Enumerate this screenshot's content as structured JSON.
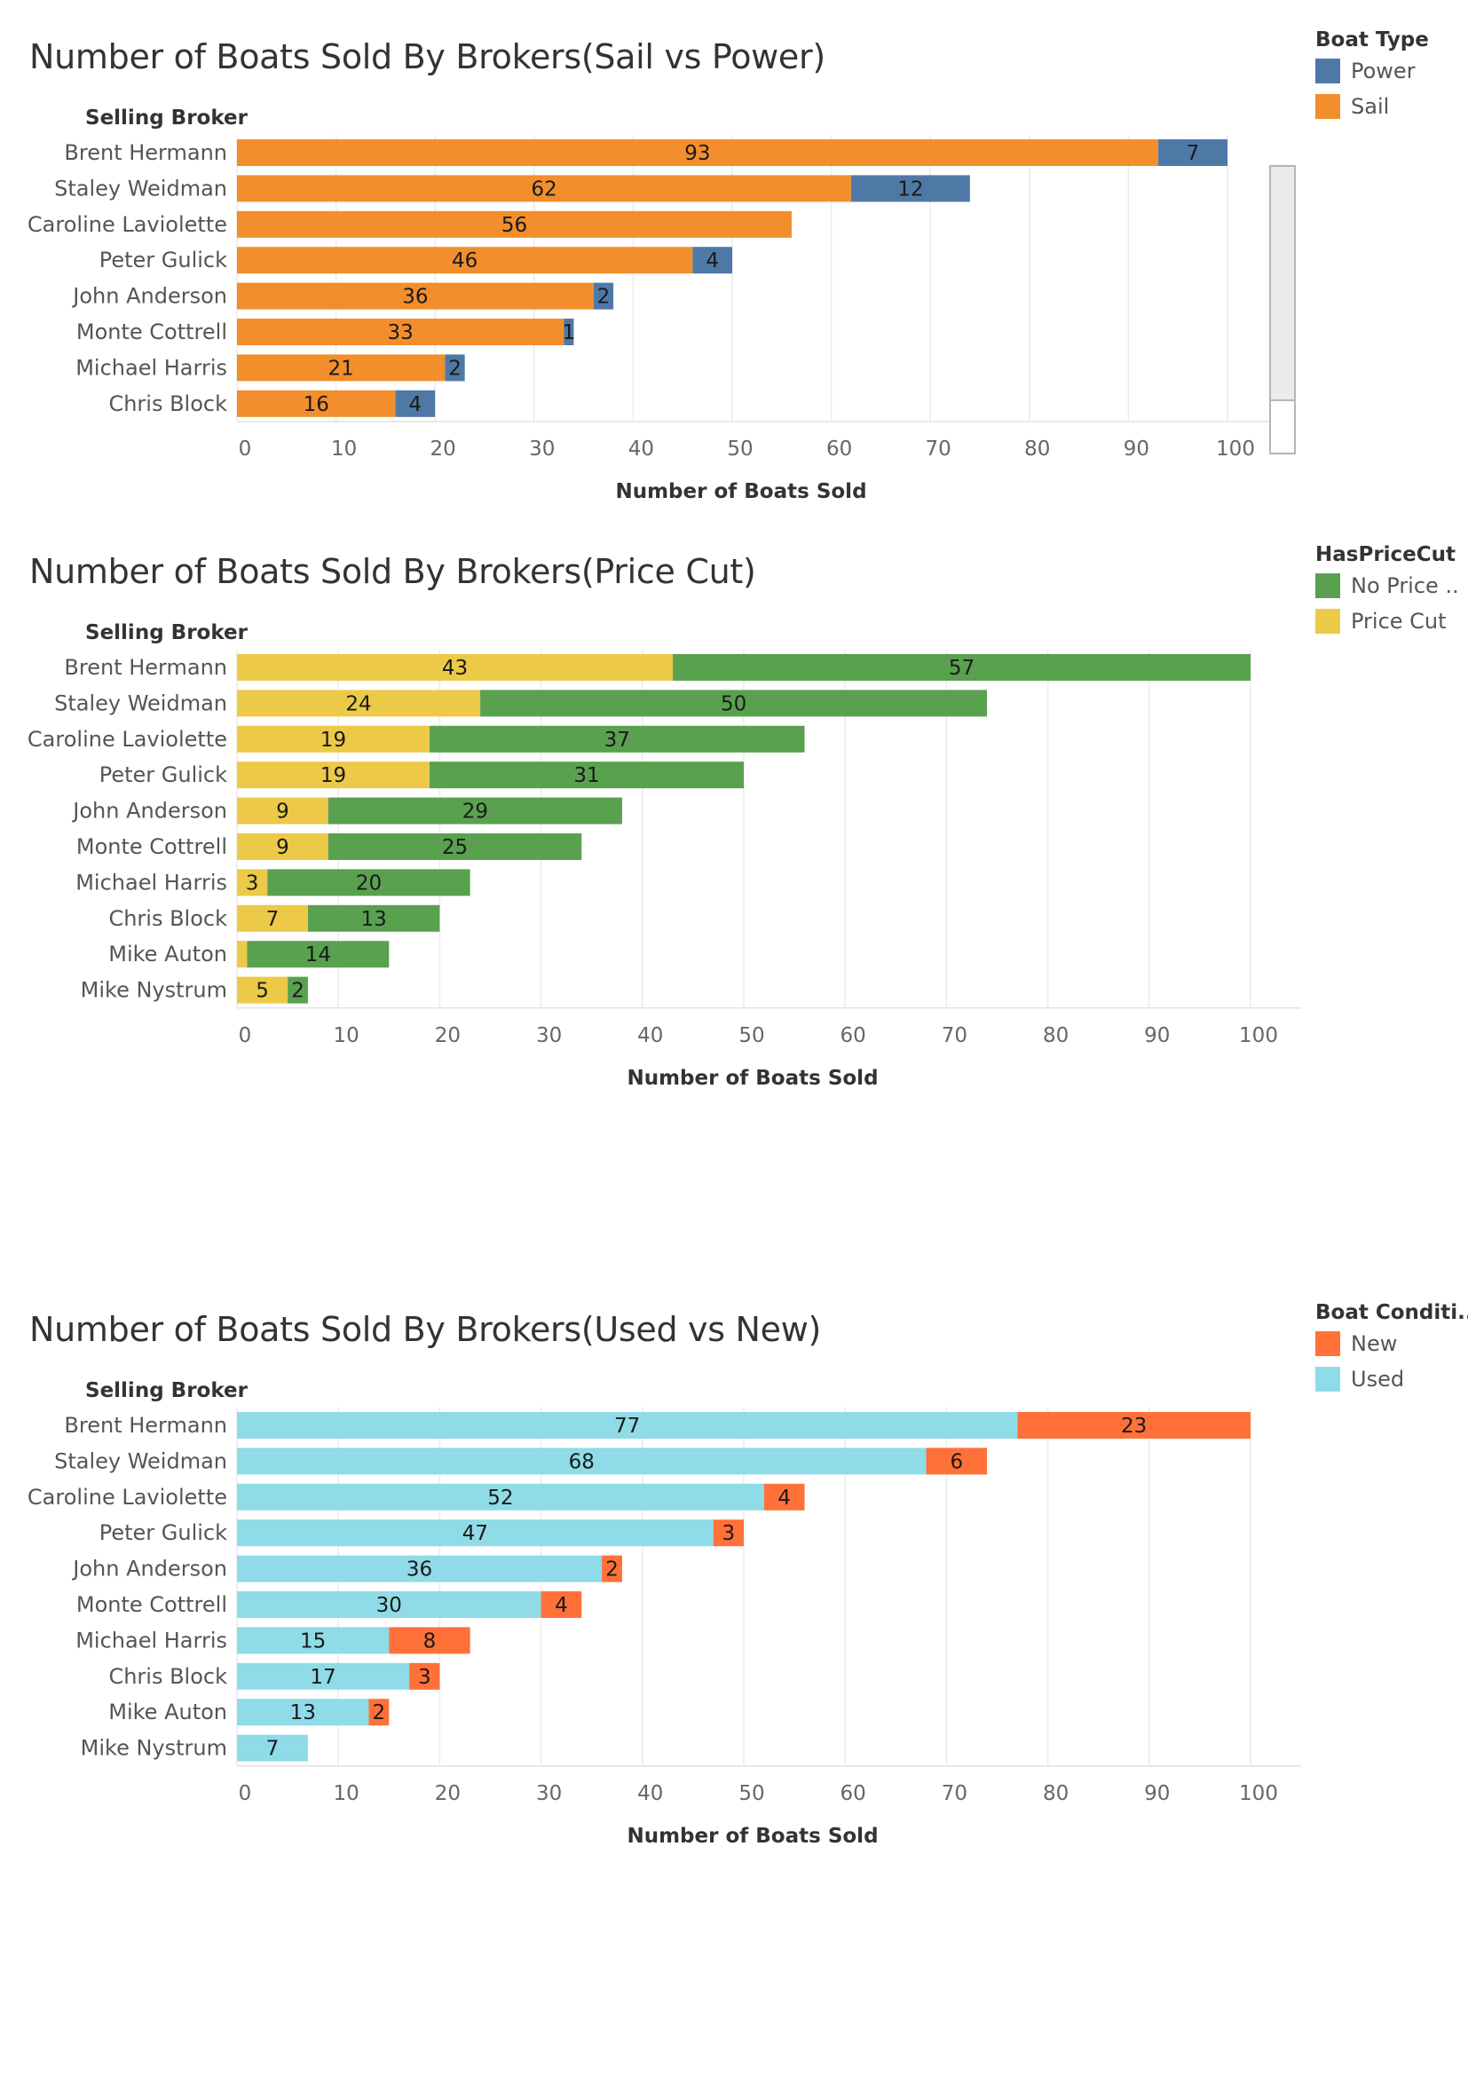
{
  "chart_data": [
    {
      "type": "bar",
      "orientation": "horizontal",
      "stacked": true,
      "title": "Number of Boats Sold By Brokers(Sail vs Power)",
      "row_header": "Selling Broker",
      "xlabel": "Number of Boats Sold",
      "xlim": [
        0,
        100
      ],
      "xticks": [
        0,
        10,
        20,
        30,
        40,
        50,
        60,
        70,
        80,
        90,
        100
      ],
      "grid": "vertical",
      "legend_title": "Boat Type",
      "legend_position": "top-right",
      "legend": [
        {
          "label": "Power",
          "color": "#4e79a7"
        },
        {
          "label": "Sail",
          "color": "#f28e2b"
        }
      ],
      "categories": [
        "Brent Hermann",
        "Staley Weidman",
        "Caroline Laviolette",
        "Peter Gulick",
        "John Anderson",
        "Monte Cottrell",
        "Michael Harris",
        "Chris Block"
      ],
      "series": [
        {
          "name": "Sail",
          "color": "#f28e2b",
          "values": [
            93,
            62,
            56,
            46,
            36,
            33,
            21,
            16
          ]
        },
        {
          "name": "Power",
          "color": "#4e79a7",
          "values": [
            7,
            12,
            null,
            4,
            2,
            1,
            2,
            4
          ]
        }
      ],
      "has_scrollbar": true
    },
    {
      "type": "bar",
      "orientation": "horizontal",
      "stacked": true,
      "title": "Number of Boats Sold By Brokers(Price Cut)",
      "row_header": "Selling Broker",
      "xlabel": "Number of Boats Sold",
      "xlim": [
        0,
        100
      ],
      "xticks": [
        0,
        10,
        20,
        30,
        40,
        50,
        60,
        70,
        80,
        90,
        100
      ],
      "grid": "vertical",
      "legend_title": "HasPriceCut",
      "legend_position": "top-right",
      "legend": [
        {
          "label": "No Price ..",
          "color": "#59a14f"
        },
        {
          "label": "Price Cut",
          "color": "#edc948"
        }
      ],
      "categories": [
        "Brent Hermann",
        "Staley Weidman",
        "Caroline Laviolette",
        "Peter Gulick",
        "John Anderson",
        "Monte Cottrell",
        "Michael Harris",
        "Chris Block",
        "Mike Auton",
        "Mike Nystrum"
      ],
      "series": [
        {
          "name": "Price Cut",
          "color": "#edc948",
          "values": [
            43,
            24,
            19,
            19,
            9,
            9,
            3,
            7,
            1,
            5
          ],
          "labels": [
            "43",
            "24",
            "19",
            "19",
            "9",
            "9",
            "3",
            "7",
            "",
            "5"
          ]
        },
        {
          "name": "No Price ..",
          "color": "#59a14f",
          "values": [
            57,
            50,
            37,
            31,
            29,
            25,
            20,
            13,
            14,
            2
          ],
          "labels": [
            "57",
            "50",
            "37",
            "31",
            "29",
            "25",
            "20",
            "13",
            "14",
            "2"
          ]
        }
      ],
      "has_scrollbar": false
    },
    {
      "type": "bar",
      "orientation": "horizontal",
      "stacked": true,
      "title": "Number of Boats Sold By Brokers(Used vs New)",
      "row_header": "Selling Broker",
      "xlabel": "Number of Boats Sold",
      "xlim": [
        0,
        100
      ],
      "xticks": [
        0,
        10,
        20,
        30,
        40,
        50,
        60,
        70,
        80,
        90,
        100
      ],
      "grid": "vertical",
      "legend_title": "Boat Conditi..",
      "legend_position": "top-right",
      "legend": [
        {
          "label": "New",
          "color": "#ff7139"
        },
        {
          "label": "Used",
          "color": "#8fdbe8"
        }
      ],
      "categories": [
        "Brent Hermann",
        "Staley Weidman",
        "Caroline Laviolette",
        "Peter Gulick",
        "John Anderson",
        "Monte Cottrell",
        "Michael Harris",
        "Chris Block",
        "Mike Auton",
        "Mike Nystrum"
      ],
      "series": [
        {
          "name": "Used",
          "color": "#8fdbe8",
          "values": [
            77,
            68,
            52,
            47,
            36,
            30,
            15,
            17,
            13,
            7
          ]
        },
        {
          "name": "New",
          "color": "#ff7139",
          "values": [
            23,
            6,
            4,
            3,
            2,
            4,
            8,
            3,
            2,
            null
          ]
        }
      ],
      "has_scrollbar": false
    }
  ]
}
